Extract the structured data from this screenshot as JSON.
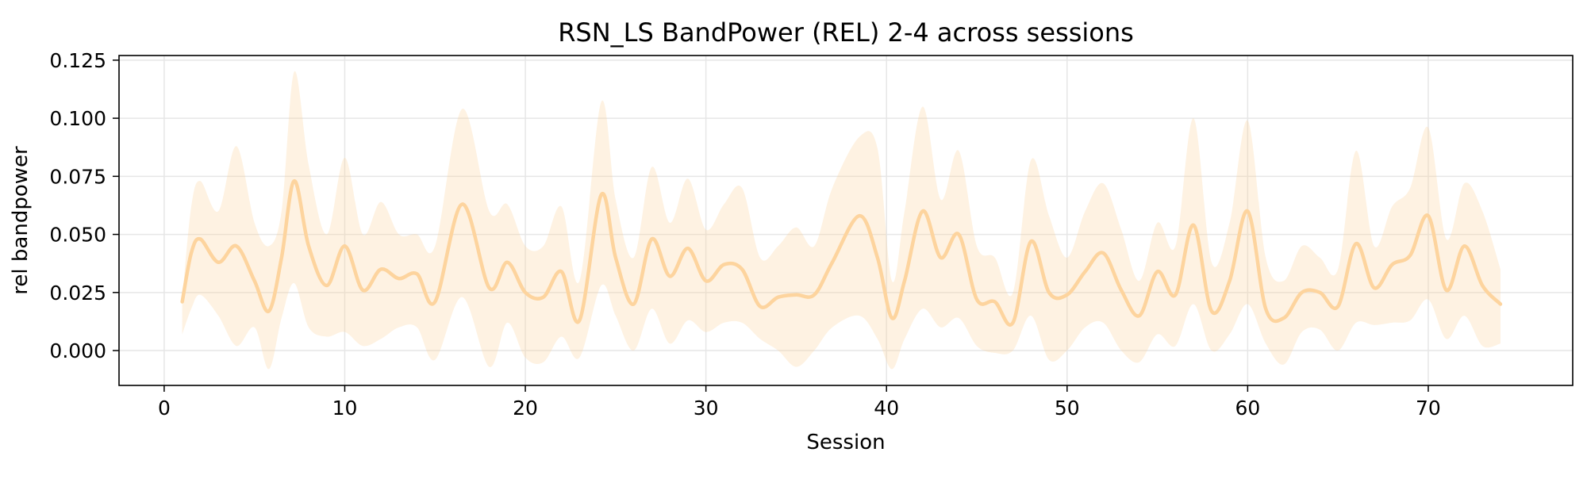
{
  "chart_data": {
    "type": "line",
    "title": "RSN_LS BandPower (REL) 2-4 across sessions",
    "xlabel": "Session",
    "ylabel": "rel bandpower",
    "xlim": [
      -2.5,
      78
    ],
    "ylim": [
      -0.015,
      0.127
    ],
    "xticks": [
      0,
      10,
      20,
      30,
      40,
      50,
      60,
      70
    ],
    "yticks": [
      0.0,
      0.025,
      0.05,
      0.075,
      0.1,
      0.125
    ],
    "xtick_labels": [
      "0",
      "10",
      "20",
      "30",
      "40",
      "50",
      "60",
      "70"
    ],
    "ytick_labels": [
      "0.000",
      "0.025",
      "0.050",
      "0.075",
      "0.100",
      "0.125"
    ],
    "grid": true,
    "colors": {
      "line": "#fdd49e",
      "band": "#fdd49e"
    },
    "series": [
      {
        "x": [
          1,
          1.5,
          2,
          3,
          4,
          5,
          5.8,
          6.5,
          7.2,
          8,
          9,
          10,
          11,
          12,
          13,
          14,
          15,
          16.5,
          18,
          19,
          20,
          21,
          22,
          23,
          24.2,
          25,
          26,
          27,
          28,
          29,
          30,
          31,
          32,
          33,
          34,
          35,
          36,
          37,
          38.5,
          39.5,
          40.3,
          41,
          42,
          43,
          44,
          45,
          46,
          47,
          48,
          49,
          50,
          51,
          52,
          53,
          54,
          55,
          56,
          57,
          58,
          59,
          60,
          61,
          62,
          63,
          64,
          65,
          66,
          67,
          68,
          69,
          70,
          71,
          72,
          73,
          74
        ],
        "y": [
          0.021,
          0.042,
          0.048,
          0.038,
          0.045,
          0.03,
          0.017,
          0.04,
          0.073,
          0.045,
          0.028,
          0.045,
          0.026,
          0.035,
          0.031,
          0.033,
          0.021,
          0.063,
          0.027,
          0.038,
          0.025,
          0.023,
          0.034,
          0.013,
          0.067,
          0.04,
          0.02,
          0.048,
          0.032,
          0.044,
          0.03,
          0.037,
          0.035,
          0.019,
          0.023,
          0.024,
          0.024,
          0.038,
          0.058,
          0.04,
          0.014,
          0.03,
          0.06,
          0.04,
          0.05,
          0.022,
          0.021,
          0.012,
          0.047,
          0.025,
          0.024,
          0.034,
          0.042,
          0.026,
          0.015,
          0.034,
          0.024,
          0.054,
          0.017,
          0.03,
          0.06,
          0.018,
          0.014,
          0.025,
          0.025,
          0.019,
          0.046,
          0.027,
          0.037,
          0.041,
          0.058,
          0.026,
          0.045,
          0.028,
          0.02
        ],
        "lower": [
          0.007,
          0.018,
          0.024,
          0.015,
          0.002,
          0.01,
          -0.008,
          0.014,
          0.029,
          0.01,
          0.006,
          0.008,
          0.002,
          0.005,
          0.01,
          0.01,
          -0.004,
          0.023,
          -0.007,
          0.012,
          -0.003,
          -0.005,
          0.006,
          -0.003,
          0.028,
          0.015,
          0.0,
          0.018,
          0.003,
          0.013,
          0.008,
          0.012,
          0.012,
          0.005,
          0.0,
          -0.007,
          0.0,
          0.01,
          0.015,
          0.005,
          -0.008,
          0.005,
          0.018,
          0.01,
          0.014,
          0.002,
          -0.001,
          0.0,
          0.015,
          -0.004,
          0.0,
          0.01,
          0.012,
          0.0,
          -0.005,
          0.007,
          0.002,
          0.02,
          0.0,
          0.007,
          0.02,
          0.003,
          -0.006,
          0.008,
          0.009,
          0.0,
          0.012,
          0.011,
          0.012,
          0.013,
          0.022,
          0.005,
          0.015,
          0.002,
          0.003
        ],
        "upper": [
          0.022,
          0.062,
          0.073,
          0.06,
          0.088,
          0.055,
          0.045,
          0.06,
          0.12,
          0.08,
          0.05,
          0.083,
          0.05,
          0.064,
          0.05,
          0.05,
          0.045,
          0.104,
          0.06,
          0.063,
          0.045,
          0.045,
          0.062,
          0.03,
          0.107,
          0.065,
          0.04,
          0.079,
          0.055,
          0.074,
          0.052,
          0.063,
          0.07,
          0.04,
          0.045,
          0.053,
          0.045,
          0.07,
          0.092,
          0.087,
          0.03,
          0.06,
          0.105,
          0.065,
          0.086,
          0.045,
          0.04,
          0.025,
          0.082,
          0.058,
          0.04,
          0.06,
          0.072,
          0.052,
          0.03,
          0.055,
          0.045,
          0.1,
          0.038,
          0.055,
          0.099,
          0.04,
          0.03,
          0.045,
          0.04,
          0.035,
          0.086,
          0.045,
          0.062,
          0.07,
          0.096,
          0.048,
          0.072,
          0.06,
          0.035
        ]
      }
    ]
  }
}
